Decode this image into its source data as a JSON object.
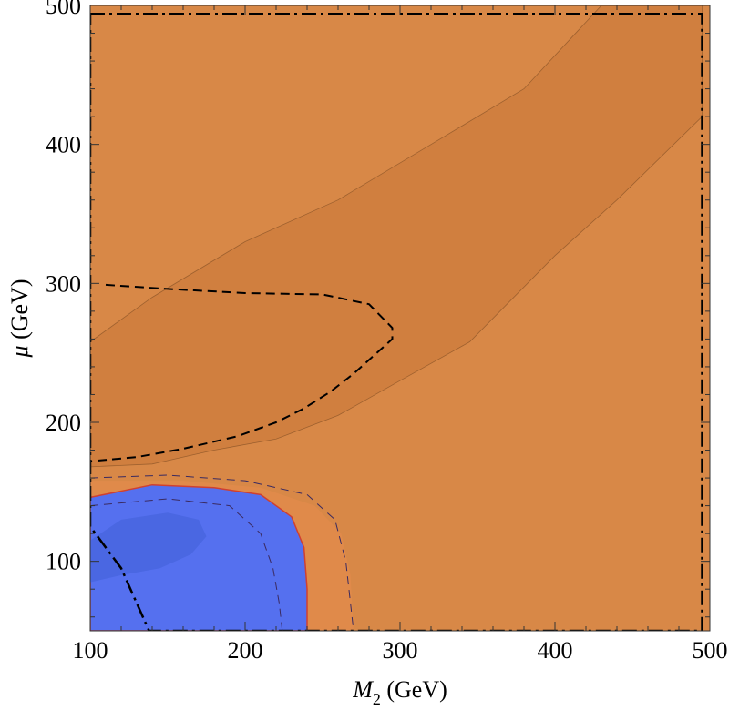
{
  "chart_data": {
    "type": "contour",
    "xlabel": {
      "symbol": "M",
      "sub": "2",
      "unit": " (GeV)"
    },
    "ylabel": {
      "symbol": "μ",
      "unit": " (GeV)"
    },
    "xlim": [
      100,
      500
    ],
    "ylim": [
      50,
      500
    ],
    "x_ticks": [
      100,
      200,
      300,
      400,
      500
    ],
    "y_ticks": [
      100,
      200,
      300,
      400,
      500
    ],
    "grid": false,
    "colors": {
      "background": "#d88847",
      "dark_band": "#d07f3f",
      "light_orange": "#e08a4a",
      "blue": "#5570ef",
      "blue_inner": "#4a67e2",
      "red_edge": "#d04030",
      "line": "#000000",
      "faint_line": "#7a4a22"
    },
    "regions": [
      {
        "name": "dark-band",
        "fill": "dark_band",
        "boundary": [
          [
            100,
            258
          ],
          [
            140,
            290
          ],
          [
            200,
            330
          ],
          [
            260,
            360
          ],
          [
            320,
            400
          ],
          [
            380,
            440
          ],
          [
            430,
            500
          ],
          [
            495,
            500
          ],
          [
            495,
            420
          ],
          [
            440,
            360
          ],
          [
            400,
            320
          ],
          [
            345,
            258
          ],
          [
            300,
            230
          ],
          [
            260,
            205
          ],
          [
            220,
            188
          ],
          [
            180,
            180
          ],
          [
            140,
            170
          ],
          [
            100,
            168
          ]
        ]
      },
      {
        "name": "light-orange-pocket",
        "fill": "light_orange",
        "boundary": [
          [
            100,
            158
          ],
          [
            160,
            158
          ],
          [
            210,
            153
          ],
          [
            245,
            140
          ],
          [
            262,
            120
          ],
          [
            268,
            90
          ],
          [
            270,
            50
          ],
          [
            100,
            50
          ]
        ]
      },
      {
        "name": "blue-region",
        "fill": "blue",
        "boundary": [
          [
            100,
            146
          ],
          [
            140,
            155
          ],
          [
            180,
            153
          ],
          [
            210,
            148
          ],
          [
            230,
            132
          ],
          [
            238,
            110
          ],
          [
            240,
            80
          ],
          [
            240,
            50
          ],
          [
            100,
            50
          ]
        ]
      },
      {
        "name": "blue-inner-region",
        "fill": "blue_inner",
        "boundary": [
          [
            100,
            115
          ],
          [
            120,
            130
          ],
          [
            150,
            135
          ],
          [
            170,
            130
          ],
          [
            175,
            118
          ],
          [
            165,
            105
          ],
          [
            145,
            95
          ],
          [
            120,
            90
          ],
          [
            100,
            85
          ]
        ]
      }
    ],
    "lines": [
      {
        "name": "dashed-contour",
        "style": "dashed",
        "width": 2,
        "points": [
          [
            110,
            299
          ],
          [
            150,
            296
          ],
          [
            200,
            293
          ],
          [
            250,
            292
          ],
          [
            280,
            285
          ],
          [
            295,
            268
          ],
          [
            295,
            260
          ],
          [
            285,
            250
          ],
          [
            270,
            235
          ],
          [
            255,
            222
          ],
          [
            238,
            210
          ],
          [
            220,
            200
          ],
          [
            195,
            190
          ],
          [
            160,
            181
          ],
          [
            130,
            175
          ],
          [
            100,
            172
          ]
        ]
      },
      {
        "name": "dash-dot-frame",
        "style": "dashdot",
        "width": 2.5,
        "points": [
          [
            100,
            494
          ],
          [
            495,
            494
          ],
          [
            495,
            50
          ],
          [
            138,
            50
          ],
          [
            130,
            70
          ],
          [
            120,
            95
          ],
          [
            100,
            125
          ],
          [
            100,
            494
          ]
        ]
      },
      {
        "name": "thin-dashed-outer",
        "style": "thin-dashed",
        "width": 1,
        "points": [
          [
            100,
            160
          ],
          [
            150,
            162
          ],
          [
            200,
            158
          ],
          [
            240,
            148
          ],
          [
            258,
            130
          ],
          [
            265,
            100
          ],
          [
            268,
            70
          ],
          [
            270,
            50
          ]
        ]
      },
      {
        "name": "thin-dashed-inner",
        "style": "thin-dashed",
        "width": 1,
        "points": [
          [
            100,
            140
          ],
          [
            150,
            145
          ],
          [
            190,
            140
          ],
          [
            210,
            120
          ],
          [
            218,
            95
          ],
          [
            222,
            70
          ],
          [
            224,
            50
          ]
        ]
      }
    ]
  }
}
